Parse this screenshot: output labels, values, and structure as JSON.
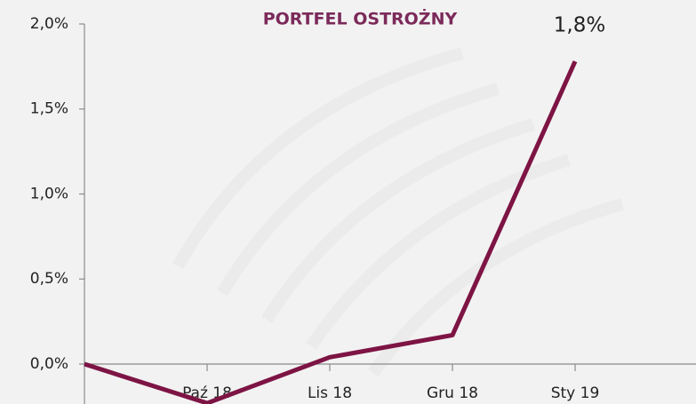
{
  "chart_data": {
    "type": "line",
    "title": "PORTFEL OSTROŻNY",
    "categories": [
      null,
      "Paź 18",
      "Lis 18",
      "Gru 18",
      "Sty 19"
    ],
    "values": [
      0,
      -0.23,
      0.04,
      0.17,
      1.78
    ],
    "value_labels": [
      null,
      null,
      null,
      null,
      "1,8%"
    ],
    "color": "#7d1444",
    "ylim": [
      -0.235,
      2.0
    ],
    "yticks": [
      {
        "value": 0,
        "label": "0,0%"
      },
      {
        "value": 0.5,
        "label": "0,5%"
      },
      {
        "value": 1.0,
        "label": "1,0%"
      },
      {
        "value": 1.5,
        "label": "1,5%"
      },
      {
        "value": 2.0,
        "label": "2,0%"
      }
    ]
  }
}
